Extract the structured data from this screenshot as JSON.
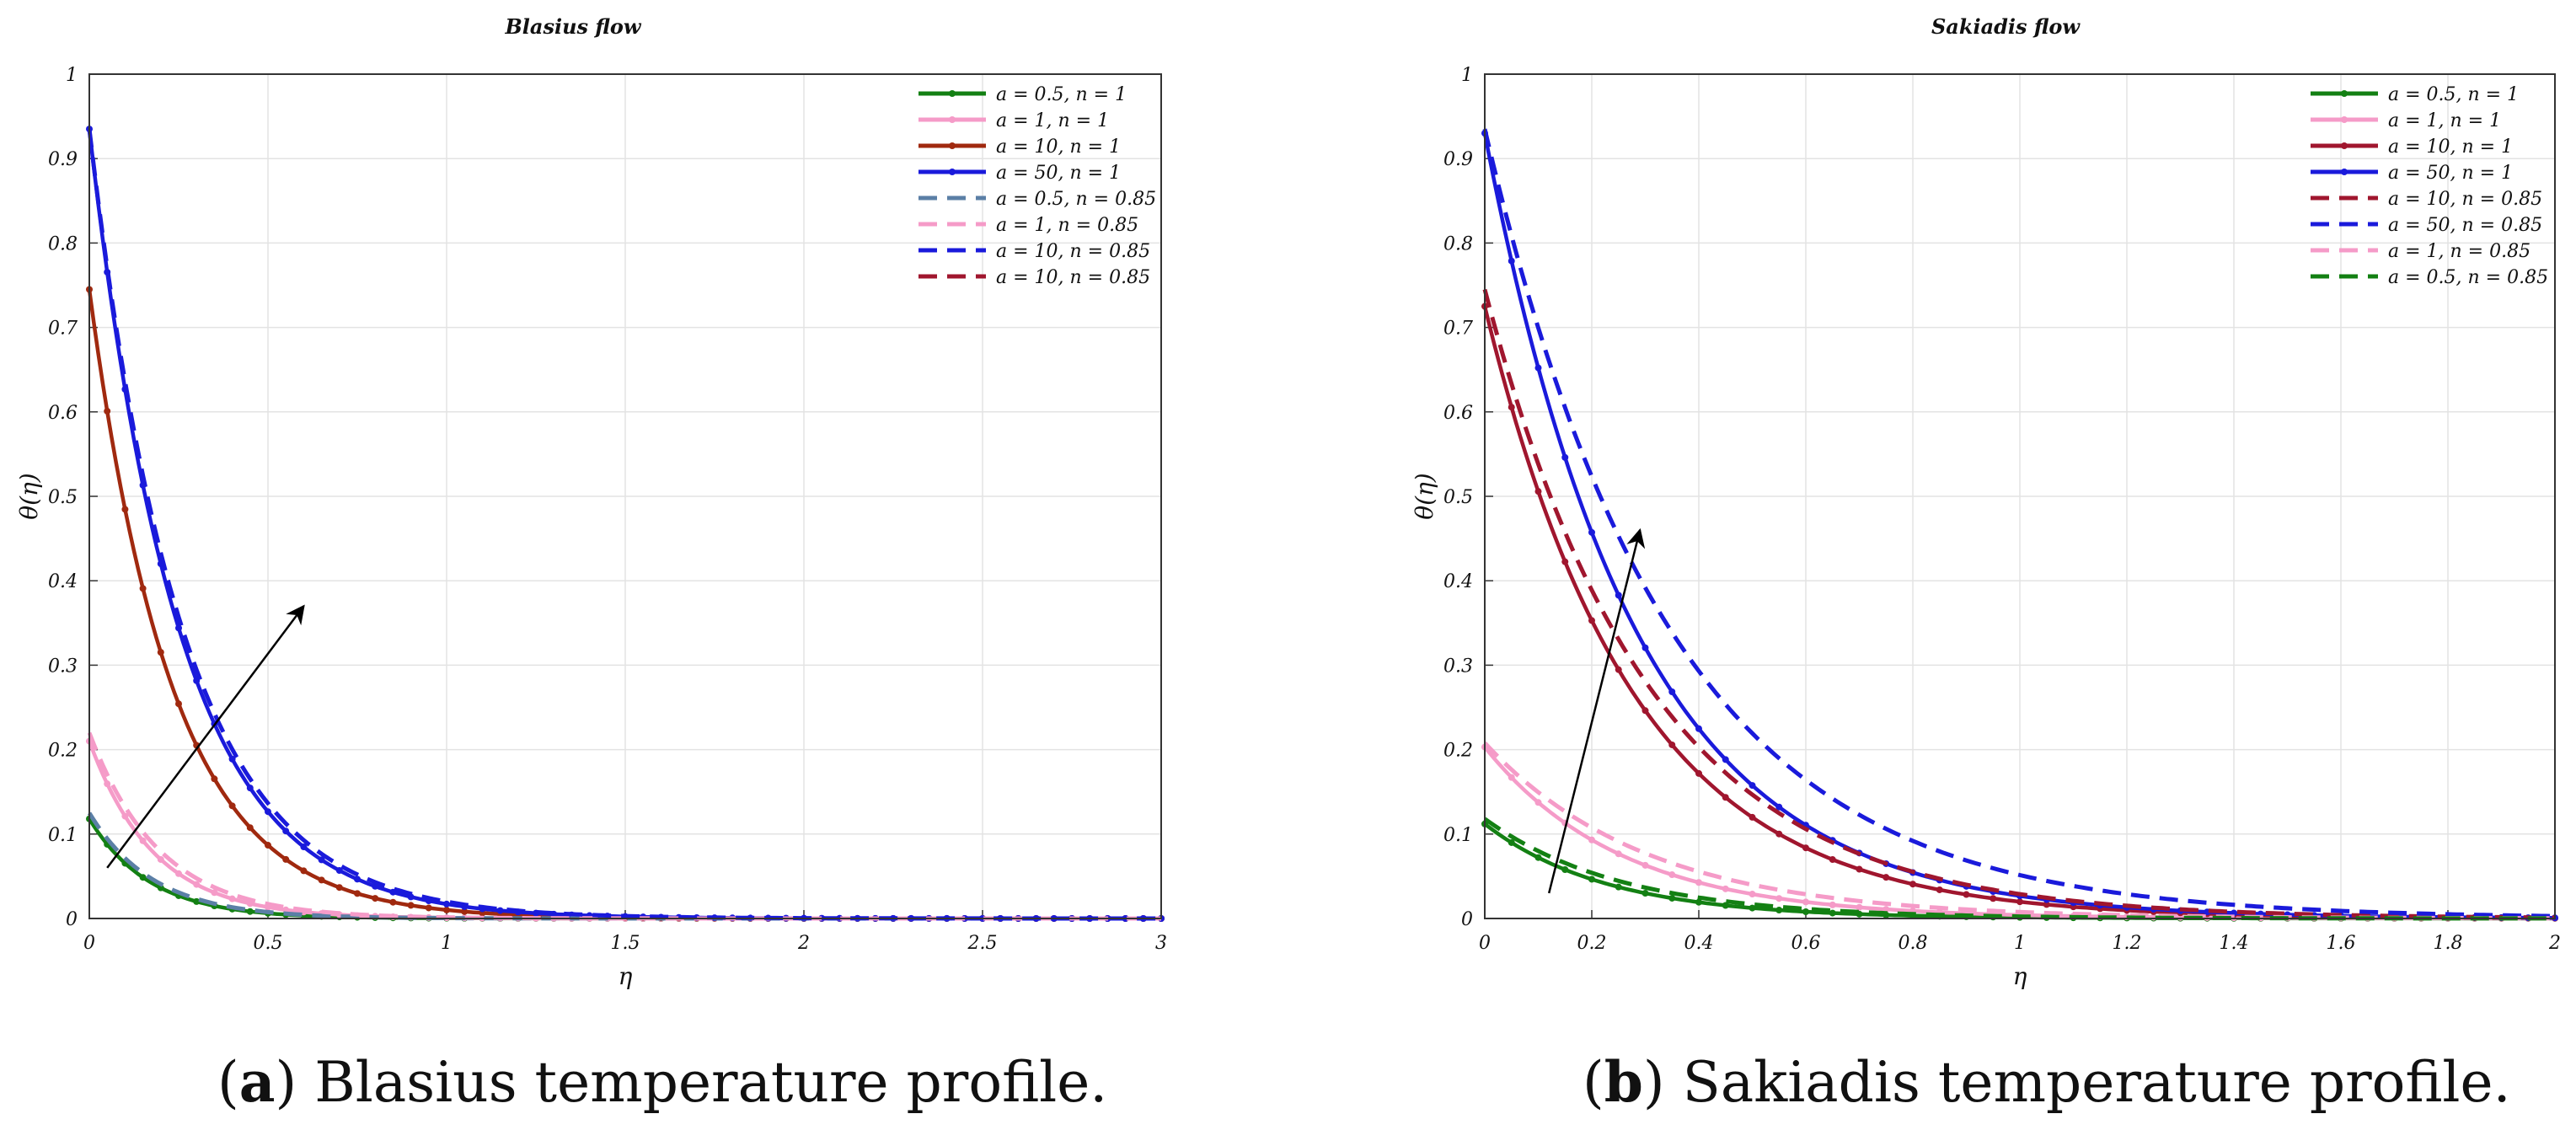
{
  "captions": [
    {
      "letter": "a",
      "text": "Blasius temperature profile."
    },
    {
      "letter": "b",
      "text": "Sakiadis temperature profile."
    }
  ],
  "chart_data": [
    {
      "id": "blasius",
      "type": "line",
      "title": "Blasius flow",
      "xlabel": "η",
      "ylabel": "θ(η)",
      "xlim": [
        0,
        3
      ],
      "ylim": [
        0,
        1
      ],
      "xticks": [
        0,
        0.5,
        1,
        1.5,
        2,
        2.5,
        3
      ],
      "xtick_labels": [
        "0",
        "0.5",
        "1",
        "1.5",
        "2",
        "2.5",
        "3"
      ],
      "yticks": [
        0,
        0.1,
        0.2,
        0.3,
        0.4,
        0.5,
        0.6,
        0.7,
        0.8,
        0.9,
        1
      ],
      "ytick_labels": [
        "0",
        "0.1",
        "0.2",
        "0.3",
        "0.4",
        "0.5",
        "0.6",
        "0.7",
        "0.8",
        "0.9",
        "1"
      ],
      "grid": true,
      "legend_position": "top-right",
      "arrow": {
        "from": [
          0.05,
          0.06
        ],
        "to": [
          0.6,
          0.37
        ]
      },
      "series": [
        {
          "name": "a = 0.5, n = 1",
          "color": "#138013",
          "style": "solid",
          "markers": true,
          "theta0": 0.118,
          "decay": 5.9
        },
        {
          "name": "a = 1, n = 1",
          "color": "#f59bc8",
          "style": "solid",
          "markers": true,
          "theta0": 0.21,
          "decay": 5.5
        },
        {
          "name": "a = 10, n = 1",
          "color": "#a0290f",
          "style": "solid",
          "markers": true,
          "theta0": 0.745,
          "decay": 4.3
        },
        {
          "name": "a = 50, n = 1",
          "color": "#1a1adb",
          "style": "solid",
          "markers": true,
          "theta0": 0.935,
          "decay": 4.0
        },
        {
          "name": "a = 0.5, n = 0.85",
          "color": "#5b7fa6",
          "style": "dashed",
          "markers": false,
          "theta0": 0.125,
          "decay": 5.6
        },
        {
          "name": "a = 1, n = 0.85",
          "color": "#f59bc8",
          "style": "dashed",
          "markers": false,
          "theta0": 0.22,
          "decay": 5.1
        },
        {
          "name": "a = 10, n = 0.85",
          "color": "#1a1adb",
          "style": "dashed",
          "markers": false,
          "theta0": 0.935,
          "decay": 3.85
        },
        {
          "name": "a = 10, n = 0.85",
          "color": "#a0162e",
          "style": "dashed",
          "markers": false,
          "theta0": 0.0,
          "decay": 4.0
        }
      ]
    },
    {
      "id": "sakiadis",
      "type": "line",
      "title": "Sakiadis flow",
      "xlabel": "η",
      "ylabel": "θ(η)",
      "xlim": [
        0,
        2
      ],
      "ylim": [
        0,
        1
      ],
      "xticks": [
        0,
        0.2,
        0.4,
        0.6,
        0.8,
        1,
        1.2,
        1.4,
        1.6,
        1.8,
        2
      ],
      "xtick_labels": [
        "0",
        "0.2",
        "0.4",
        "0.6",
        "0.8",
        "1",
        "1.2",
        "1.4",
        "1.6",
        "1.8",
        "2"
      ],
      "yticks": [
        0,
        0.1,
        0.2,
        0.3,
        0.4,
        0.5,
        0.6,
        0.7,
        0.8,
        0.9,
        1
      ],
      "ytick_labels": [
        "0",
        "0.1",
        "0.2",
        "0.3",
        "0.4",
        "0.5",
        "0.6",
        "0.7",
        "0.8",
        "0.9",
        "1"
      ],
      "grid": true,
      "legend_position": "top-right",
      "arrow": {
        "from": [
          0.12,
          0.03
        ],
        "to": [
          0.29,
          0.46
        ]
      },
      "series": [
        {
          "name": "a = 0.5, n = 1",
          "color": "#138013",
          "style": "solid",
          "markers": true,
          "theta0": 0.112,
          "decay": 4.4
        },
        {
          "name": "a = 1, n = 1",
          "color": "#f59bc8",
          "style": "solid",
          "markers": true,
          "theta0": 0.203,
          "decay": 3.9
        },
        {
          "name": "a = 10, n = 1",
          "color": "#a0162e",
          "style": "solid",
          "markers": true,
          "theta0": 0.725,
          "decay": 3.6
        },
        {
          "name": "a = 50, n = 1",
          "color": "#1a1adb",
          "style": "solid",
          "markers": true,
          "theta0": 0.93,
          "decay": 3.55
        },
        {
          "name": "a = 10, n = 0.85",
          "color": "#a0162e",
          "style": "dashed",
          "markers": false,
          "theta0": 0.745,
          "decay": 3.25
        },
        {
          "name": "a = 50, n = 0.85",
          "color": "#1a1adb",
          "style": "dashed",
          "markers": false,
          "theta0": 0.935,
          "decay": 2.9
        },
        {
          "name": "a = 1, n = 0.85",
          "color": "#f59bc8",
          "style": "dashed",
          "markers": false,
          "theta0": 0.208,
          "decay": 3.3
        },
        {
          "name": "a = 0.5, n = 0.85",
          "color": "#138013",
          "style": "dashed",
          "markers": false,
          "theta0": 0.118,
          "decay": 3.9
        }
      ]
    }
  ]
}
